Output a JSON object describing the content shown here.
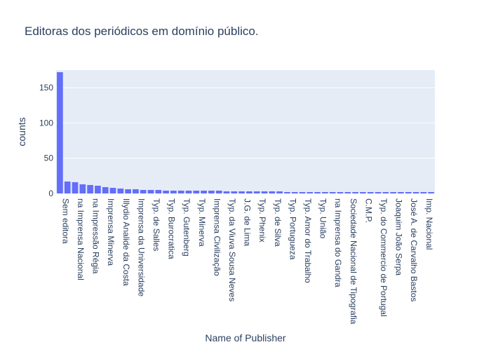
{
  "chart_data": {
    "type": "bar",
    "title": "Editoras dos periódicos em domínio público.",
    "xlabel": "Name of Publisher",
    "ylabel": "counts",
    "ylim": [
      0,
      175
    ],
    "yticks": [
      0,
      50,
      100,
      150
    ],
    "grid": true,
    "colors": {
      "bar": "#636efa",
      "plot_bg": "#e5ecf6",
      "grid": "#ffffff",
      "text": "#2a3f5f"
    },
    "categories": [
      "Sem editora",
      "",
      "na Imprensa Nacional",
      "",
      "na Impressão Régia",
      "",
      "Imprensa Minerva",
      "",
      "Illydio Analide da Costa",
      "",
      "Imprensa da Universidade",
      "",
      "Typ. de Salles",
      "",
      "Typ. Burocratica",
      "",
      "Typ. Gutenberg",
      "",
      "Typ. Minerva",
      "",
      "Imprensa Civilização",
      "",
      "Typ. da Viuva Sousa Neves",
      "",
      "J.G. de Lima",
      "",
      "Typ. Phenix",
      "",
      "Typ. de Silva",
      "",
      "Typ. Portugueza",
      "",
      "Typ. Amor do Trabalho",
      "",
      "Typ. União",
      "",
      "na Imprensa do Gandra",
      "",
      "Sociedade Nacional de Tipografia",
      "",
      "C.M.P.",
      "",
      "Typ. do Commercio de Portugal",
      "",
      "Joaquim João Serpa",
      "",
      "José A. de Carvalho Bastos",
      "",
      "Imp. Nacional",
      ""
    ],
    "values": [
      172,
      17,
      16,
      13,
      12,
      11,
      9,
      8,
      7,
      6,
      6,
      5,
      5,
      5,
      4,
      4,
      4,
      4,
      4,
      4,
      4,
      4,
      3,
      3,
      3,
      3,
      3,
      3,
      3,
      3,
      2,
      2,
      2,
      2,
      2,
      2,
      2,
      2,
      2,
      2,
      2,
      2,
      2,
      2,
      2,
      2,
      2,
      2,
      2,
      2
    ]
  }
}
